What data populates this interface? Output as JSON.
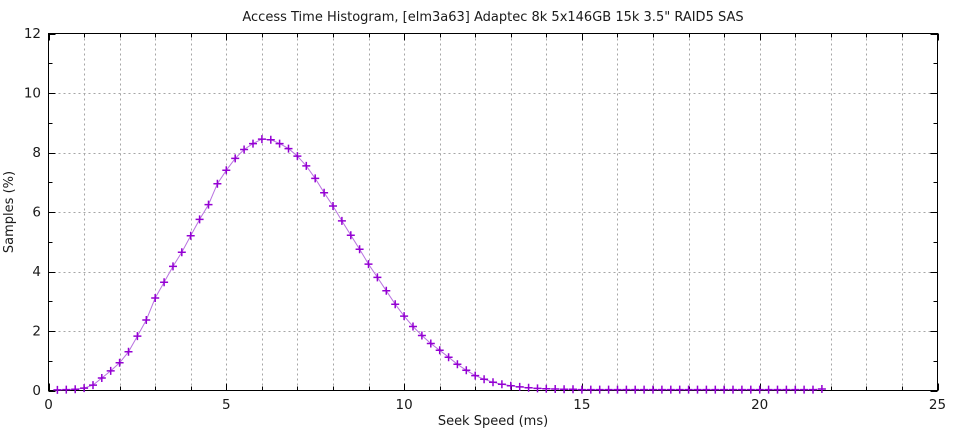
{
  "title": "Access Time Histogram, [elm3a63] Adaptec 8k 5x146GB 15k 3.5\" RAID5 SAS",
  "colors": {
    "background": "#ffffff",
    "frame": "#000000",
    "grid": "#a6a6a6",
    "text": "#1a1a1a",
    "series_line": "#b973e0",
    "series_marker": "#9400d3"
  },
  "chart_data": {
    "type": "line",
    "title": "Access Time Histogram, [elm3a63] Adaptec 8k 5x146GB 15k 3.5\" RAID5 SAS",
    "xlabel": "Seek Speed (ms)",
    "ylabel": "Samples (%)",
    "xlim": [
      0,
      25
    ],
    "ylim": [
      0,
      12
    ],
    "x_major_ticks": [
      0,
      5,
      10,
      15,
      20,
      25
    ],
    "x_minor_step": 1,
    "y_major_ticks": [
      0,
      2,
      4,
      6,
      8,
      10,
      12
    ],
    "y_minor_step": 1,
    "grid": {
      "vertical": "every 1 ms, dotted",
      "horizontal": "every 2 %, dotted"
    },
    "legend": "none",
    "marker": "plus",
    "series": [
      {
        "name": "seek-time-samples",
        "x": [
          0.25,
          0.5,
          0.75,
          1.0,
          1.25,
          1.5,
          1.75,
          2.0,
          2.25,
          2.5,
          2.75,
          3.0,
          3.25,
          3.5,
          3.75,
          4.0,
          4.25,
          4.5,
          4.75,
          5.0,
          5.25,
          5.5,
          5.75,
          6.0,
          6.25,
          6.5,
          6.75,
          7.0,
          7.25,
          7.5,
          7.75,
          8.0,
          8.25,
          8.5,
          8.75,
          9.0,
          9.25,
          9.5,
          9.75,
          10.0,
          10.25,
          10.5,
          10.75,
          11.0,
          11.25,
          11.5,
          11.75,
          12.0,
          12.25,
          12.5,
          12.75,
          13.0,
          13.25,
          13.5,
          13.75,
          14.0,
          14.25,
          14.5,
          14.75,
          15.0,
          15.25,
          15.5,
          15.75,
          16.0,
          16.25,
          16.5,
          16.75,
          17.0,
          17.25,
          17.5,
          17.75,
          18.0,
          18.25,
          18.5,
          18.75,
          19.0,
          19.25,
          19.5,
          19.75,
          20.0,
          20.25,
          20.5,
          20.75,
          21.0,
          21.25,
          21.5,
          21.75
        ],
        "y": [
          0.02,
          0.03,
          0.04,
          0.08,
          0.18,
          0.42,
          0.66,
          0.93,
          1.3,
          1.83,
          2.37,
          3.11,
          3.64,
          4.17,
          4.65,
          5.2,
          5.75,
          6.25,
          6.95,
          7.4,
          7.8,
          8.1,
          8.3,
          8.45,
          8.43,
          8.3,
          8.13,
          7.88,
          7.55,
          7.13,
          6.65,
          6.2,
          5.7,
          5.22,
          4.75,
          4.25,
          3.8,
          3.35,
          2.9,
          2.5,
          2.15,
          1.85,
          1.58,
          1.35,
          1.12,
          0.88,
          0.68,
          0.5,
          0.38,
          0.28,
          0.21,
          0.16,
          0.12,
          0.09,
          0.07,
          0.06,
          0.05,
          0.04,
          0.04,
          0.03,
          0.03,
          0.03,
          0.03,
          0.03,
          0.03,
          0.03,
          0.03,
          0.03,
          0.03,
          0.03,
          0.03,
          0.03,
          0.03,
          0.03,
          0.03,
          0.03,
          0.03,
          0.03,
          0.03,
          0.03,
          0.03,
          0.03,
          0.03,
          0.03,
          0.03,
          0.03,
          0.05
        ]
      }
    ]
  }
}
